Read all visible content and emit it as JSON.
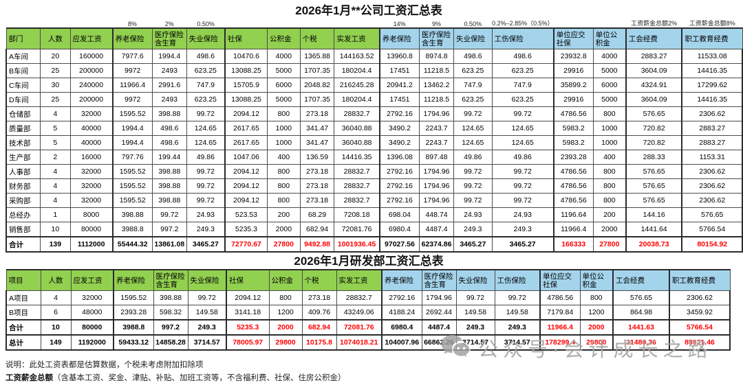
{
  "table1": {
    "title": "2026年1月**公司工资汇总表",
    "rates": [
      "",
      "",
      "",
      "8%",
      "2%",
      "0.50%",
      "",
      "",
      "",
      "",
      "14%",
      "9%",
      "0.50%",
      "0.2%–2.85%（0.5%）",
      "",
      "",
      "工资薪金总额2%",
      "工资薪金总额8%"
    ],
    "headers": [
      "部门",
      "人数",
      "应发工资",
      "养老保险",
      "医疗保险含生育",
      "失业保险",
      "社保",
      "公积金",
      "个税",
      "实发工资",
      "养老保险",
      "医疗保险含生育",
      "失业保险",
      "工伤保险",
      "单位应交社保",
      "单位公积金",
      "工会经费",
      "职工教育经费"
    ],
    "rows": [
      {
        "label": "A车间",
        "values": [
          20,
          160000,
          7977.6,
          1994.4,
          498.6,
          10470.6,
          4000,
          1365.88,
          144163.52,
          13960.8,
          8974.8,
          498.6,
          498.6,
          23932.8,
          4000,
          2883.27,
          11533.08
        ]
      },
      {
        "label": "B车间",
        "values": [
          25,
          200000,
          9972,
          2493,
          623.25,
          13088.25,
          5000,
          1707.35,
          180204.4,
          17451,
          11218.5,
          623.25,
          623.25,
          29916,
          5000,
          3604.09,
          14416.35
        ]
      },
      {
        "label": "C车间",
        "values": [
          30,
          240000,
          11966.4,
          2991.6,
          747.9,
          15705.9,
          6000,
          2048.82,
          216245.28,
          20941.2,
          13462.2,
          747.9,
          747.9,
          35899.2,
          6000,
          4324.91,
          17299.62
        ]
      },
      {
        "label": "D车间",
        "values": [
          25,
          200000,
          9972,
          2493,
          623.25,
          13088.25,
          5000,
          1707.35,
          180204.4,
          17451,
          11218.5,
          623.25,
          623.25,
          29916,
          5000,
          3604.09,
          14416.35
        ]
      },
      {
        "label": "仓储部",
        "values": [
          4,
          32000,
          1595.52,
          398.88,
          99.72,
          2094.12,
          800,
          273.18,
          28832.7,
          2792.16,
          1794.96,
          99.72,
          99.72,
          4786.56,
          800,
          576.65,
          2306.62
        ]
      },
      {
        "label": "质量部",
        "values": [
          5,
          40000,
          1994.4,
          498.6,
          124.65,
          2617.65,
          1000,
          341.47,
          36040.88,
          3490.2,
          2243.7,
          124.65,
          124.65,
          5983.2,
          1000,
          720.82,
          2883.27
        ]
      },
      {
        "label": "技术部",
        "values": [
          5,
          40000,
          1994.4,
          498.6,
          124.65,
          2617.65,
          1000,
          341.47,
          36040.88,
          3490.2,
          2243.7,
          124.65,
          124.65,
          5983.2,
          1000,
          720.82,
          2883.27
        ]
      },
      {
        "label": "生产部",
        "values": [
          2,
          16000,
          797.76,
          199.44,
          49.86,
          1047.06,
          400,
          136.59,
          14416.35,
          1396.08,
          897.48,
          49.86,
          49.86,
          2393.28,
          400,
          288.33,
          1153.31
        ]
      },
      {
        "label": "人事部",
        "values": [
          4,
          32000,
          1595.52,
          398.88,
          99.72,
          2094.12,
          800,
          273.18,
          28832.7,
          2792.16,
          1794.96,
          99.72,
          99.72,
          4786.56,
          800,
          576.65,
          2306.62
        ]
      },
      {
        "label": "财务部",
        "values": [
          4,
          32000,
          1595.52,
          398.88,
          99.72,
          2094.12,
          800,
          273.18,
          28832.7,
          2792.16,
          1794.96,
          99.72,
          99.72,
          4786.56,
          800,
          576.65,
          2306.62
        ]
      },
      {
        "label": "采购部",
        "values": [
          4,
          32000,
          1595.52,
          398.88,
          99.72,
          2094.12,
          800,
          273.18,
          28832.7,
          2792.16,
          1794.96,
          99.72,
          99.72,
          4786.56,
          800,
          576.65,
          2306.62
        ]
      },
      {
        "label": "总经办",
        "values": [
          1,
          8000,
          398.88,
          99.72,
          24.93,
          523.53,
          200,
          68.29,
          7208.18,
          698.04,
          448.74,
          24.93,
          24.93,
          1196.64,
          200,
          144.16,
          576.65
        ]
      },
      {
        "label": "销售部",
        "values": [
          10,
          80000,
          3988.8,
          997.2,
          249.3,
          5235.3,
          2000,
          682.94,
          72081.76,
          6980.4,
          4487.4,
          249.3,
          249.3,
          11966.4,
          2000,
          1441.64,
          5766.54
        ]
      },
      {
        "label": "合计",
        "total": true,
        "values": [
          139,
          1112000,
          55444.32,
          13861.08,
          3465.27,
          72770.67,
          27800,
          9492.88,
          1001936.45,
          97027.56,
          62374.86,
          3465.27,
          3465.27,
          166333,
          27800,
          20038.73,
          80154.92
        ]
      }
    ]
  },
  "table2": {
    "title": "2026年1月研发部工资汇总表",
    "headers": [
      "项目",
      "人数",
      "应发工资",
      "养老保险",
      "医疗保险含生育",
      "失业保险",
      "社保",
      "公积金",
      "个税",
      "实发工资",
      "养老保险",
      "医疗保险含生育",
      "失业保险",
      "工伤保险",
      "单位应交社保",
      "单位公积金",
      "工会经费",
      "职工教育经费"
    ],
    "rows": [
      {
        "label": "A项目",
        "values": [
          4,
          32000,
          1595.52,
          398.88,
          99.72,
          2094.12,
          800,
          273.18,
          28832.7,
          2792.16,
          1794.96,
          99.72,
          99.72,
          4786.56,
          800,
          576.65,
          2306.62
        ]
      },
      {
        "label": "B项目",
        "values": [
          6,
          48000,
          2393.28,
          598.32,
          149.58,
          3141.18,
          1200,
          409.76,
          43249.06,
          4188.24,
          2692.44,
          149.58,
          149.58,
          7179.84,
          1200,
          864.98,
          3459.92
        ]
      },
      {
        "label": "合计",
        "total": true,
        "values": [
          10,
          80000,
          3988.8,
          997.2,
          249.3,
          5235.3,
          2000,
          682.94,
          72081.76,
          6980.4,
          4487.4,
          249.3,
          249.3,
          11966.4,
          2000,
          1441.63,
          5766.54
        ]
      },
      {
        "label": "总计",
        "total": true,
        "values": [
          149,
          1192000,
          59433.12,
          14858.28,
          3714.57,
          78005.97,
          29800,
          10175.8,
          1074018.21,
          104007.96,
          66862.26,
          3714.57,
          3714.57,
          178299.4,
          29800,
          21480.36,
          85921.46
        ]
      }
    ]
  },
  "red_value_indices": [
    5,
    6,
    7,
    8,
    13,
    14,
    15,
    16
  ],
  "footer": {
    "line1": "说明：此处工资表都是估算数据，个税未考虑附加扣除项",
    "line2_bold": "工资薪金总额",
    "line2_rest": "（含基本工资、奖金、津贴、补贴、加班工资等，不含福利费、社保、住房公积金）"
  },
  "watermark": {
    "text": "公众号·会计成长之路",
    "icon": "wechat-icon"
  },
  "colors": {
    "header_green": "#92D050",
    "header_blue": "#A4D4EC",
    "total_red": "#FF0000",
    "watermark_gray": "#A8A8A8"
  }
}
